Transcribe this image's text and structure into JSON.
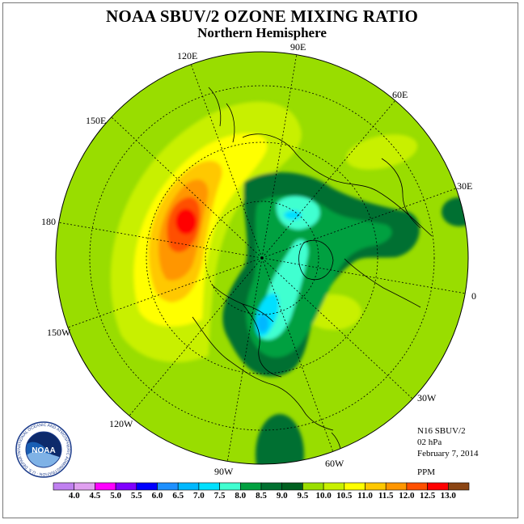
{
  "title": "NOAA SBUV/2 OZONE MIXING RATIO",
  "subtitle": "Northern Hemisphere",
  "longitude_labels": [
    "90E",
    "60E",
    "30E",
    "0",
    "30W",
    "60W",
    "90W",
    "120W",
    "150W",
    "180",
    "150E",
    "120E"
  ],
  "info": {
    "instrument": "N16 SBUV/2",
    "pressure_level": "02 hPa",
    "date": "February 7, 2014",
    "units": "PPM"
  },
  "logo": {
    "name": "NOAA",
    "ring_text": "NATIONAL OCEANIC AND ATMOSPHERIC ADMINISTRATION · U.S. DEPARTMENT OF COMMERCE"
  },
  "colorbar": {
    "ticks": [
      "4.0",
      "4.5",
      "5.0",
      "5.5",
      "6.0",
      "6.5",
      "7.0",
      "7.5",
      "8.0",
      "8.5",
      "9.0",
      "9.5",
      "10.0",
      "10.5",
      "11.0",
      "11.5",
      "12.0",
      "12.5",
      "13.0"
    ],
    "colors": [
      "#c080f0",
      "#e0a0f0",
      "#ff00ff",
      "#8000ff",
      "#0000ff",
      "#1e90ff",
      "#00b8ff",
      "#00e0ff",
      "#40ffd0",
      "#00a040",
      "#007030",
      "#006020",
      "#9ade00",
      "#c8f000",
      "#ffff00",
      "#ffc800",
      "#ff9600",
      "#ff5000",
      "#ff0000",
      "#8b4513"
    ]
  }
}
